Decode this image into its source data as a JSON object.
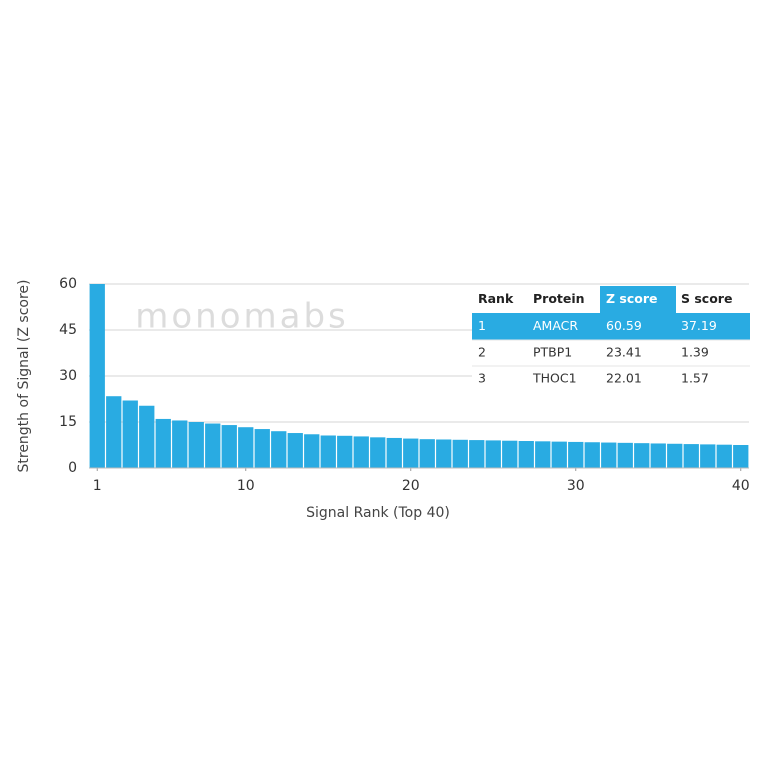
{
  "chart_data": {
    "type": "bar",
    "xlabel": "Signal Rank (Top 40)",
    "ylabel": "Strength of Signal (Z score)",
    "watermark": "monomabs",
    "x": [
      1,
      2,
      3,
      4,
      5,
      6,
      7,
      8,
      9,
      10,
      11,
      12,
      13,
      14,
      15,
      16,
      17,
      18,
      19,
      20,
      21,
      22,
      23,
      24,
      25,
      26,
      27,
      28,
      29,
      30,
      31,
      32,
      33,
      34,
      35,
      36,
      37,
      38,
      39,
      40
    ],
    "values": [
      60.59,
      23.41,
      22.01,
      20.3,
      16,
      15.5,
      15,
      14.5,
      14,
      13.3,
      12.7,
      12,
      11.4,
      11,
      10.6,
      10.5,
      10.3,
      10,
      9.8,
      9.6,
      9.4,
      9.3,
      9.2,
      9.1,
      9.0,
      8.9,
      8.8,
      8.7,
      8.6,
      8.5,
      8.4,
      8.3,
      8.2,
      8.1,
      8.0,
      7.9,
      7.8,
      7.7,
      7.6,
      7.5
    ],
    "color": "#29abe2",
    "xlim": [
      0.5,
      40.5
    ],
    "xticks": [
      1,
      10,
      20,
      30,
      40
    ],
    "ylim": [
      0,
      60
    ],
    "yticks": [
      0,
      15,
      30,
      45,
      60
    ],
    "grid": true,
    "table": {
      "columns": [
        "Rank",
        "Protein",
        "Z score",
        "S score"
      ],
      "rows": [
        [
          1,
          "AMACR",
          60.59,
          37.19
        ],
        [
          2,
          "PTBP1",
          23.41,
          1.39
        ],
        [
          3,
          "THOC1",
          22.01,
          1.57
        ]
      ],
      "highlight_row": 0,
      "highlight_column": 2,
      "highlight_color": "#29abe2"
    }
  }
}
